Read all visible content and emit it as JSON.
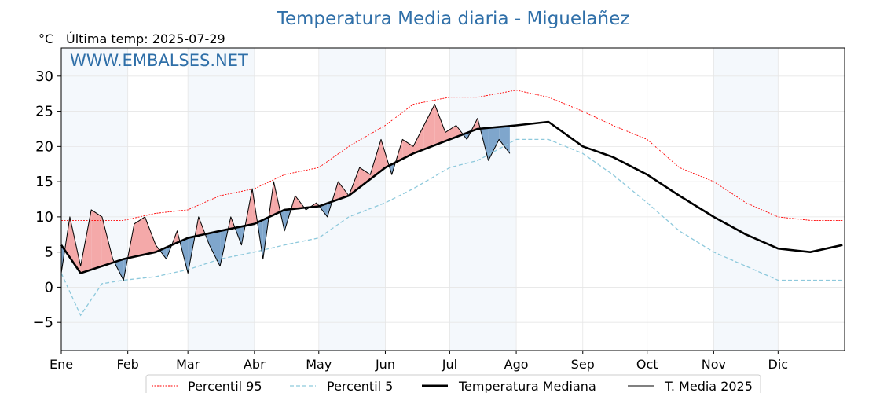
{
  "chart_data": {
    "type": "line",
    "title": "Temperatura Media diaria - Miguelañez",
    "unit_label": "°C",
    "last_temp_label": "Última temp: 2025-07-29",
    "watermark": "WWW.EMBALSES.NET",
    "ylim": [
      -9,
      34
    ],
    "yticks": [
      -5,
      0,
      5,
      10,
      15,
      20,
      25,
      30
    ],
    "ytick_labels": [
      "−5",
      "0",
      "5",
      "10",
      "15",
      "20",
      "25",
      "30"
    ],
    "months": [
      "Ene",
      "Feb",
      "Mar",
      "Abr",
      "May",
      "Jun",
      "Jul",
      "Ago",
      "Sep",
      "Oct",
      "Nov",
      "Dic"
    ],
    "month_start_day": [
      1,
      32,
      60,
      91,
      121,
      152,
      182,
      213,
      244,
      274,
      305,
      335
    ],
    "grid": true,
    "shaded_months": [
      "Ene",
      "Mar",
      "May",
      "Jul",
      "Nov"
    ],
    "legend_position": "bottom",
    "colors": {
      "p95": "#ff0000",
      "p5": "#8ec9dc",
      "median": "#000000",
      "current": "#000000",
      "above_fill": "#f4a9a9",
      "below_fill": "#7fa6cc",
      "band": "#dfe9f5",
      "title": "#2f6fa8"
    },
    "series": [
      {
        "name": "Percentil 95",
        "day": [
          1,
          15,
          30,
          45,
          60,
          75,
          91,
          105,
          121,
          135,
          152,
          165,
          182,
          195,
          213,
          228,
          244,
          258,
          274,
          289,
          305,
          320,
          335,
          350,
          365
        ],
        "values": [
          9.5,
          9.5,
          9.5,
          10.5,
          11.0,
          13.0,
          14.0,
          16.0,
          17.0,
          20.0,
          23.0,
          26.0,
          27.0,
          27.0,
          28.0,
          27.0,
          25.0,
          23.0,
          21.0,
          17.0,
          15.0,
          12.0,
          10.0,
          9.5,
          9.5
        ]
      },
      {
        "name": "Percentil 5",
        "day": [
          1,
          10,
          20,
          30,
          45,
          60,
          75,
          91,
          105,
          121,
          135,
          152,
          165,
          182,
          195,
          213,
          228,
          244,
          258,
          274,
          289,
          305,
          320,
          335,
          350,
          365
        ],
        "values": [
          2.0,
          -4.0,
          0.5,
          1.0,
          1.5,
          2.5,
          4.0,
          5.0,
          6.0,
          7.0,
          10.0,
          12.0,
          14.0,
          17.0,
          18.0,
          21.0,
          21.0,
          19.0,
          16.0,
          12.0,
          8.0,
          5.0,
          3.0,
          1.0,
          1.0,
          1.0
        ]
      },
      {
        "name": "Temperatura Mediana",
        "day": [
          1,
          10,
          20,
          30,
          45,
          60,
          75,
          91,
          105,
          121,
          135,
          152,
          165,
          182,
          195,
          213,
          228,
          244,
          258,
          274,
          289,
          305,
          320,
          335,
          350,
          365
        ],
        "values": [
          6.0,
          2.0,
          3.0,
          4.0,
          5.0,
          7.0,
          8.0,
          9.0,
          11.0,
          11.5,
          13.0,
          17.0,
          19.0,
          21.0,
          22.5,
          23.0,
          23.5,
          20.0,
          18.5,
          16.0,
          13.0,
          10.0,
          7.5,
          5.5,
          5.0,
          6.0
        ]
      },
      {
        "name": "T. Media 2025",
        "day": [
          1,
          5,
          10,
          15,
          20,
          25,
          30,
          35,
          40,
          45,
          50,
          55,
          60,
          65,
          70,
          75,
          80,
          85,
          90,
          95,
          100,
          105,
          110,
          115,
          120,
          125,
          130,
          135,
          140,
          145,
          150,
          155,
          160,
          165,
          170,
          175,
          180,
          185,
          190,
          195,
          200,
          205,
          210
        ],
        "values": [
          2,
          10,
          3,
          11,
          10,
          4,
          1,
          9,
          10,
          6,
          4,
          8,
          2,
          10,
          6,
          3,
          10,
          6,
          14,
          4,
          15,
          8,
          13,
          11,
          12,
          10,
          15,
          13,
          17,
          16,
          21,
          16,
          21,
          20,
          23,
          26,
          22,
          23,
          21,
          24,
          18,
          21,
          19
        ]
      }
    ]
  },
  "legend": {
    "p95": "Percentil 95",
    "p5": "Percentil 5",
    "median": "Temperatura Mediana",
    "current": "T. Media 2025"
  }
}
